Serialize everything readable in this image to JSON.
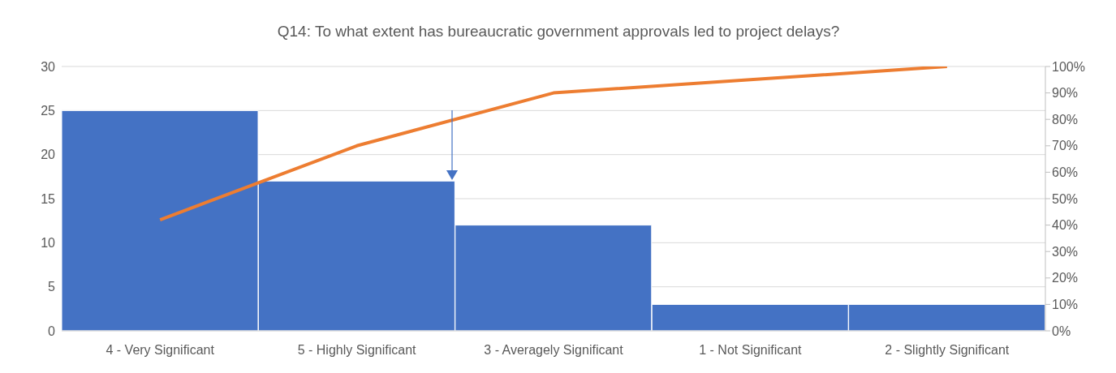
{
  "chart_data": {
    "type": "bar",
    "title": "Q14: To what extent has bureaucratic government approvals led to project delays?",
    "categories": [
      "4 - Very Significant",
      "5 - Highly Significant",
      "3 - Averagely Significant",
      "1 - Not Significant",
      "2 - Slightly Significant"
    ],
    "series": [
      {
        "color": "#4472c4",
        "values": [
          25,
          17,
          12,
          3,
          3
        ]
      },
      {
        "type": "line",
        "axis": "y2",
        "color": "#ed7d31",
        "values": [
          42,
          70,
          90,
          95,
          100
        ]
      }
    ],
    "ylim": [
      0,
      30
    ],
    "yticks": [
      0,
      5,
      10,
      15,
      20,
      25,
      30
    ],
    "y2lim": [
      0,
      100
    ],
    "y2ticks": [
      {
        "value": 0,
        "label": "0%"
      },
      {
        "value": 10,
        "label": "10%"
      },
      {
        "value": 20,
        "label": "20%"
      },
      {
        "value": 30,
        "label": "30%"
      },
      {
        "value": 40,
        "label": "40%"
      },
      {
        "value": 50,
        "label": "50%"
      },
      {
        "value": 60,
        "label": "60%"
      },
      {
        "value": 70,
        "label": "70%"
      },
      {
        "value": 80,
        "label": "80%"
      },
      {
        "value": 90,
        "label": "90%"
      },
      {
        "value": 100,
        "label": "100%"
      }
    ],
    "grid": "y",
    "marker": "none",
    "legend": false
  }
}
